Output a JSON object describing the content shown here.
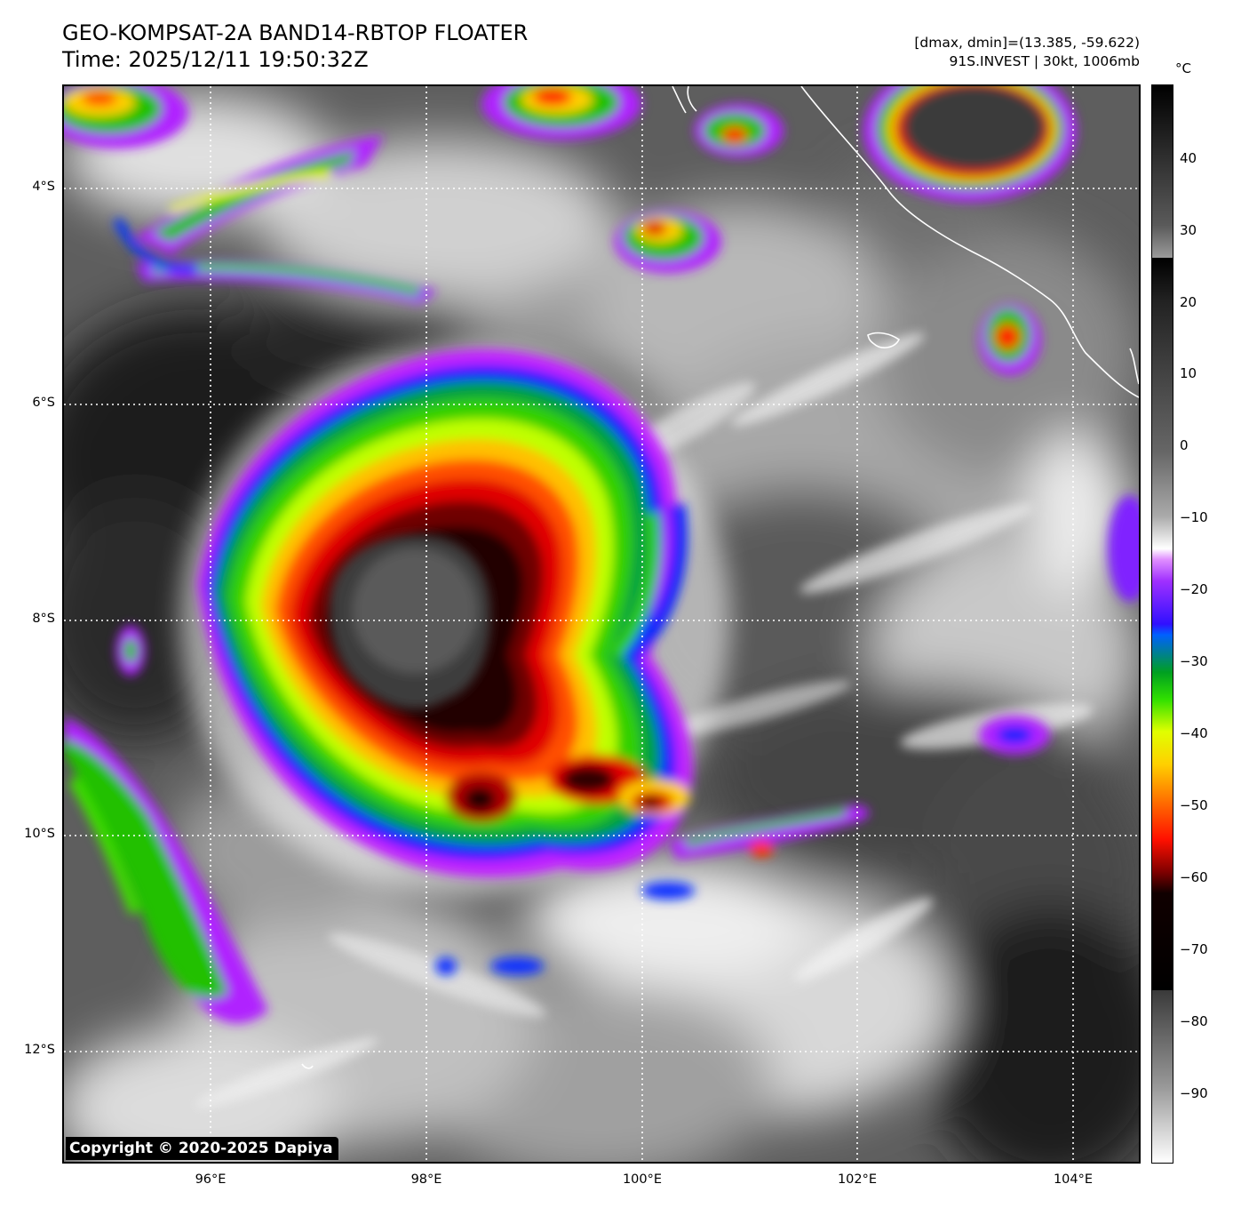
{
  "header": {
    "title_line1": "GEO-KOMPSAT-2A BAND14-RBTOP FLOATER",
    "title_line2": "Time: 2025/12/11 19:50:32Z",
    "range_info": "[dmax, dmin]=(13.385, -59.622)",
    "storm_info": "91S.INVEST | 30kt, 1006mb"
  },
  "map": {
    "copyright": "Copyright © 2020-2025 Dapiya",
    "lat_labels": [
      "4°S",
      "6°S",
      "8°S",
      "10°S",
      "12°S"
    ],
    "lon_labels": [
      "96°E",
      "98°E",
      "100°E",
      "102°E",
      "104°E"
    ],
    "gridline_style": "dotted-white",
    "coastline_color": "#ffffff"
  },
  "colorbar": {
    "unit": "°C",
    "labels": [
      "40",
      "30",
      "20",
      "10",
      "0",
      "−10",
      "−20",
      "−30",
      "−40",
      "−50",
      "−60",
      "−70",
      "−80",
      "−90"
    ]
  },
  "colors": {
    "cold_core": "#1a0000",
    "red": "#e00000",
    "yellow": "#f0ff00",
    "green": "#30d000",
    "blue": "#1020ff",
    "violet": "#b020ff"
  }
}
